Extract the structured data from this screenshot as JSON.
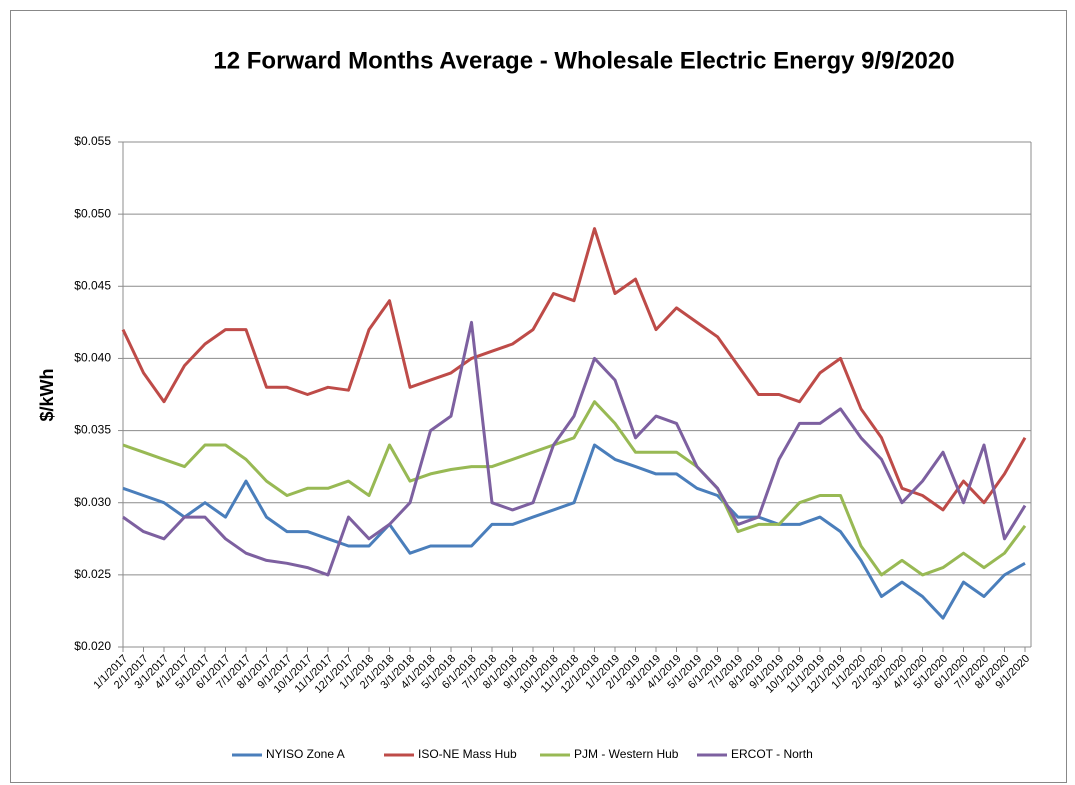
{
  "chart_data": {
    "type": "line",
    "title": "12 Forward Months Average - Wholesale Electric Energy 9/9/2020",
    "y_label": "$/kWh",
    "categories": [
      "1/1/2017",
      "2/1/2017",
      "3/1/2017",
      "4/1/2017",
      "5/1/2017",
      "6/1/2017",
      "7/1/2017",
      "8/1/2017",
      "9/1/2017",
      "10/1/2017",
      "11/1/2017",
      "12/1/2017",
      "1/1/2018",
      "2/1/2018",
      "3/1/2018",
      "4/1/2018",
      "5/1/2018",
      "6/1/2018",
      "7/1/2018",
      "8/1/2018",
      "9/1/2018",
      "10/1/2018",
      "11/1/2018",
      "12/1/2018",
      "1/1/2019",
      "2/1/2019",
      "3/1/2019",
      "4/1/2019",
      "5/1/2019",
      "6/1/2019",
      "7/1/2019",
      "8/1/2019",
      "9/1/2019",
      "10/1/2019",
      "11/1/2019",
      "12/1/2019",
      "1/1/2020",
      "2/1/2020",
      "3/1/2020",
      "4/1/2020",
      "5/1/2020",
      "6/1/2020",
      "7/1/2020",
      "8/1/2020",
      "9/1/2020"
    ],
    "series": [
      {
        "name": "NYISO Zone A",
        "color": "#4a7ebb",
        "values": [
          0.031,
          0.0305,
          0.03,
          0.029,
          0.03,
          0.029,
          0.0315,
          0.029,
          0.028,
          0.028,
          0.0275,
          0.027,
          0.027,
          0.0285,
          0.0265,
          0.027,
          0.027,
          0.027,
          0.0285,
          0.0285,
          0.029,
          0.0295,
          0.03,
          0.034,
          0.033,
          0.0325,
          0.032,
          0.032,
          0.031,
          0.0305,
          0.029,
          0.029,
          0.0285,
          0.0285,
          0.029,
          0.028,
          0.026,
          0.0235,
          0.0245,
          0.0235,
          0.022,
          0.0245,
          0.0235,
          0.025,
          0.0258
        ]
      },
      {
        "name": "ISO-NE Mass Hub",
        "color": "#be4b48",
        "values": [
          0.042,
          0.039,
          0.037,
          0.0395,
          0.041,
          0.042,
          0.042,
          0.038,
          0.038,
          0.0375,
          0.038,
          0.0378,
          0.042,
          0.044,
          0.038,
          0.0385,
          0.039,
          0.04,
          0.0405,
          0.041,
          0.042,
          0.0445,
          0.044,
          0.049,
          0.0445,
          0.0455,
          0.042,
          0.0435,
          0.0425,
          0.0415,
          0.0395,
          0.0375,
          0.0375,
          0.037,
          0.039,
          0.04,
          0.0365,
          0.0345,
          0.031,
          0.0305,
          0.0295,
          0.0315,
          0.03,
          0.032,
          0.0345
        ]
      },
      {
        "name": "PJM - Western Hub",
        "color": "#98b954",
        "values": [
          0.034,
          0.0335,
          0.033,
          0.0325,
          0.034,
          0.034,
          0.033,
          0.0315,
          0.0305,
          0.031,
          0.031,
          0.0315,
          0.0305,
          0.034,
          0.0315,
          0.032,
          0.0323,
          0.0325,
          0.0325,
          0.033,
          0.0335,
          0.034,
          0.0345,
          0.037,
          0.0355,
          0.0335,
          0.0335,
          0.0335,
          0.0325,
          0.031,
          0.028,
          0.0285,
          0.0285,
          0.03,
          0.0305,
          0.0305,
          0.027,
          0.025,
          0.026,
          0.025,
          0.0255,
          0.0265,
          0.0255,
          0.0265,
          0.0284
        ]
      },
      {
        "name": "ERCOT - North",
        "color": "#7d60a0",
        "values": [
          0.029,
          0.028,
          0.0275,
          0.029,
          0.029,
          0.0275,
          0.0265,
          0.026,
          0.0258,
          0.0255,
          0.025,
          0.029,
          0.0275,
          0.0285,
          0.03,
          0.035,
          0.036,
          0.0425,
          0.03,
          0.0295,
          0.03,
          0.034,
          0.036,
          0.04,
          0.0385,
          0.0345,
          0.036,
          0.0355,
          0.0325,
          0.031,
          0.0285,
          0.029,
          0.033,
          0.0355,
          0.0355,
          0.0365,
          0.0345,
          0.033,
          0.03,
          0.0315,
          0.0335,
          0.03,
          0.034,
          0.0275,
          0.0298
        ]
      }
    ],
    "ylim": [
      0.02,
      0.055
    ],
    "yticks": [
      {
        "value": 0.02,
        "label": "$0.020"
      },
      {
        "value": 0.025,
        "label": "$0.025"
      },
      {
        "value": 0.03,
        "label": "$0.030"
      },
      {
        "value": 0.035,
        "label": "$0.035"
      },
      {
        "value": 0.04,
        "label": "$0.040"
      },
      {
        "value": 0.045,
        "label": "$0.045"
      },
      {
        "value": 0.05,
        "label": "$0.050"
      },
      {
        "value": 0.055,
        "label": "$0.055"
      }
    ],
    "grid": true,
    "legend": "bottom"
  }
}
